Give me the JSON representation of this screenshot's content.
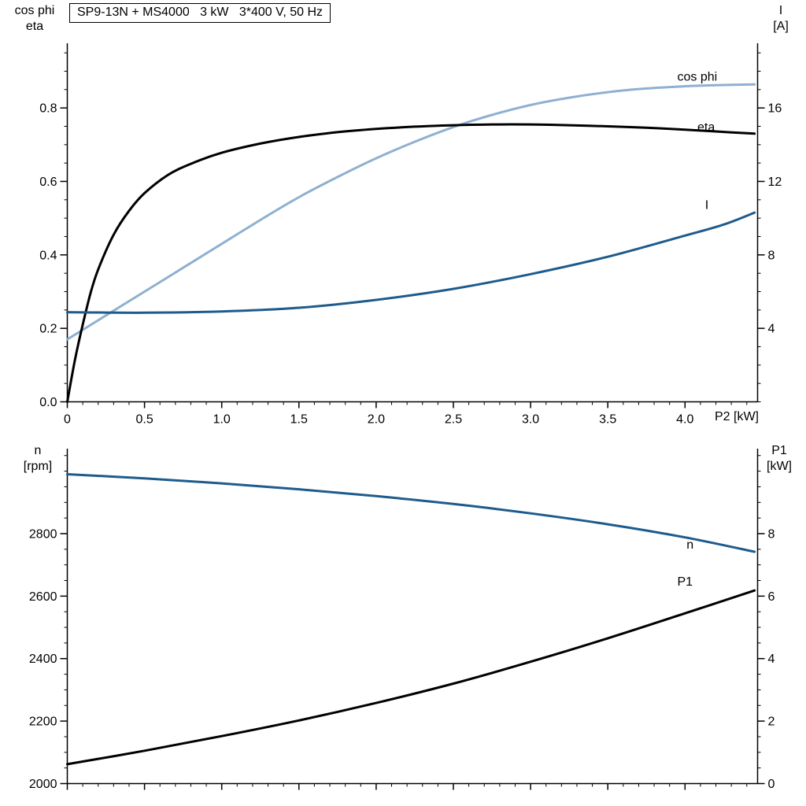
{
  "colors": {
    "light_blue": "#8fb0d0",
    "dark_blue": "#1e5b8c",
    "black": "#000000",
    "background": "#ffffff"
  },
  "chart_data": [
    {
      "type": "line",
      "title": "SP9-13N + MS4000   3 kW   3*400 V, 50 Hz",
      "x_axis": {
        "label": "P2 [kW]",
        "min": 0,
        "max": 4.47,
        "ticks": [
          0,
          0.5,
          1.0,
          1.5,
          2.0,
          2.5,
          3.0,
          3.5,
          4.0
        ],
        "tick_labels": [
          "0",
          "0.5",
          "1.0",
          "1.5",
          "2.0",
          "2.5",
          "3.0",
          "3.5",
          "4.0"
        ],
        "minor_step": 0.1
      },
      "y_left": {
        "title_line1": "cos phi",
        "title_line2": "eta",
        "min": 0,
        "max": 0.976,
        "ticks": [
          0,
          0.2,
          0.4,
          0.6,
          0.8
        ],
        "tick_labels": [
          "0.0",
          "0.2",
          "0.4",
          "0.6",
          "0.8"
        ],
        "minor_step": 0.05
      },
      "y_right": {
        "title_line1": "I",
        "title_line2": "[A]",
        "min": 0,
        "max": 19.52,
        "ticks": [
          4,
          8,
          12,
          16
        ],
        "tick_labels": [
          "4",
          "8",
          "12",
          "16"
        ],
        "minor_step": 1
      },
      "series": [
        {
          "name": "cos phi",
          "axis": "left",
          "color": "#8fb0d0",
          "label": {
            "text": "cos phi",
            "x": 3.95,
            "y": 0.874
          },
          "points": [
            [
              0,
              0.17
            ],
            [
              0.25,
              0.235
            ],
            [
              0.5,
              0.3
            ],
            [
              0.75,
              0.365
            ],
            [
              1.0,
              0.43
            ],
            [
              1.25,
              0.495
            ],
            [
              1.5,
              0.557
            ],
            [
              1.75,
              0.612
            ],
            [
              2.0,
              0.663
            ],
            [
              2.25,
              0.708
            ],
            [
              2.5,
              0.748
            ],
            [
              2.75,
              0.781
            ],
            [
              3.0,
              0.808
            ],
            [
              3.25,
              0.828
            ],
            [
              3.5,
              0.843
            ],
            [
              3.75,
              0.853
            ],
            [
              4.0,
              0.859
            ],
            [
              4.2,
              0.862
            ],
            [
              4.45,
              0.864
            ]
          ]
        },
        {
          "name": "eta",
          "axis": "left",
          "color": "#000000",
          "label": {
            "text": "eta",
            "x": 4.08,
            "y": 0.737
          },
          "points": [
            [
              0,
              0
            ],
            [
              0.05,
              0.115
            ],
            [
              0.1,
              0.21
            ],
            [
              0.15,
              0.295
            ],
            [
              0.2,
              0.36
            ],
            [
              0.3,
              0.455
            ],
            [
              0.4,
              0.52
            ],
            [
              0.5,
              0.568
            ],
            [
              0.65,
              0.617
            ],
            [
              0.8,
              0.648
            ],
            [
              1.0,
              0.678
            ],
            [
              1.25,
              0.703
            ],
            [
              1.5,
              0.721
            ],
            [
              1.75,
              0.734
            ],
            [
              2.0,
              0.743
            ],
            [
              2.25,
              0.749
            ],
            [
              2.5,
              0.753
            ],
            [
              2.75,
              0.755
            ],
            [
              3.0,
              0.755
            ],
            [
              3.25,
              0.753
            ],
            [
              3.5,
              0.75
            ],
            [
              3.75,
              0.746
            ],
            [
              4.0,
              0.741
            ],
            [
              4.2,
              0.736
            ],
            [
              4.45,
              0.73
            ]
          ]
        },
        {
          "name": "I",
          "axis": "right",
          "color": "#1e5b8c",
          "label": {
            "text": "I",
            "x": 4.13,
            "y": 10.5
          },
          "points": [
            [
              0,
              4.88
            ],
            [
              0.5,
              4.85
            ],
            [
              1.0,
              4.92
            ],
            [
              1.5,
              5.12
            ],
            [
              2.0,
              5.55
            ],
            [
              2.5,
              6.15
            ],
            [
              3.0,
              6.95
            ],
            [
              3.5,
              7.9
            ],
            [
              4.0,
              9.05
            ],
            [
              4.25,
              9.65
            ],
            [
              4.45,
              10.3
            ]
          ]
        }
      ]
    },
    {
      "type": "line",
      "title": "",
      "x_axis": {
        "label": "",
        "min": 0,
        "max": 4.47,
        "ticks": [
          0,
          0.5,
          1.0,
          1.5,
          2.0,
          2.5,
          3.0,
          3.5,
          4.0
        ],
        "tick_labels": [],
        "minor_step": 0.1
      },
      "y_left": {
        "title_line1": "n",
        "title_line2": "[rpm]",
        "min": 2000,
        "max": 3072,
        "ticks": [
          2000,
          2200,
          2400,
          2600,
          2800
        ],
        "tick_labels": [
          "2000",
          "2200",
          "2400",
          "2600",
          "2800"
        ],
        "minor_step": 50
      },
      "y_right": {
        "title_line1": "P1",
        "title_line2": "[kW]",
        "min": 0,
        "max": 10.72,
        "ticks": [
          0,
          2,
          4,
          6,
          8
        ],
        "tick_labels": [
          "0",
          "2",
          "4",
          "6",
          "8"
        ],
        "minor_step": 0.5
      },
      "series": [
        {
          "name": "n",
          "axis": "left",
          "color": "#1e5b8c",
          "label": {
            "text": "n",
            "x": 4.01,
            "y": 2752
          },
          "points": [
            [
              0,
              2990
            ],
            [
              0.5,
              2977
            ],
            [
              1.0,
              2961
            ],
            [
              1.5,
              2942
            ],
            [
              2.0,
              2920
            ],
            [
              2.5,
              2895
            ],
            [
              3.0,
              2865
            ],
            [
              3.5,
              2830
            ],
            [
              4.0,
              2788
            ],
            [
              4.45,
              2742
            ]
          ]
        },
        {
          "name": "P1",
          "axis": "right",
          "color": "#000000",
          "label": {
            "text": "P1",
            "x": 3.95,
            "y": 6.34
          },
          "points": [
            [
              0,
              0.62
            ],
            [
              0.5,
              1.05
            ],
            [
              1.0,
              1.52
            ],
            [
              1.5,
              2.02
            ],
            [
              2.0,
              2.58
            ],
            [
              2.5,
              3.2
            ],
            [
              3.0,
              3.9
            ],
            [
              3.5,
              4.65
            ],
            [
              4.0,
              5.45
            ],
            [
              4.45,
              6.18
            ]
          ]
        }
      ]
    }
  ]
}
